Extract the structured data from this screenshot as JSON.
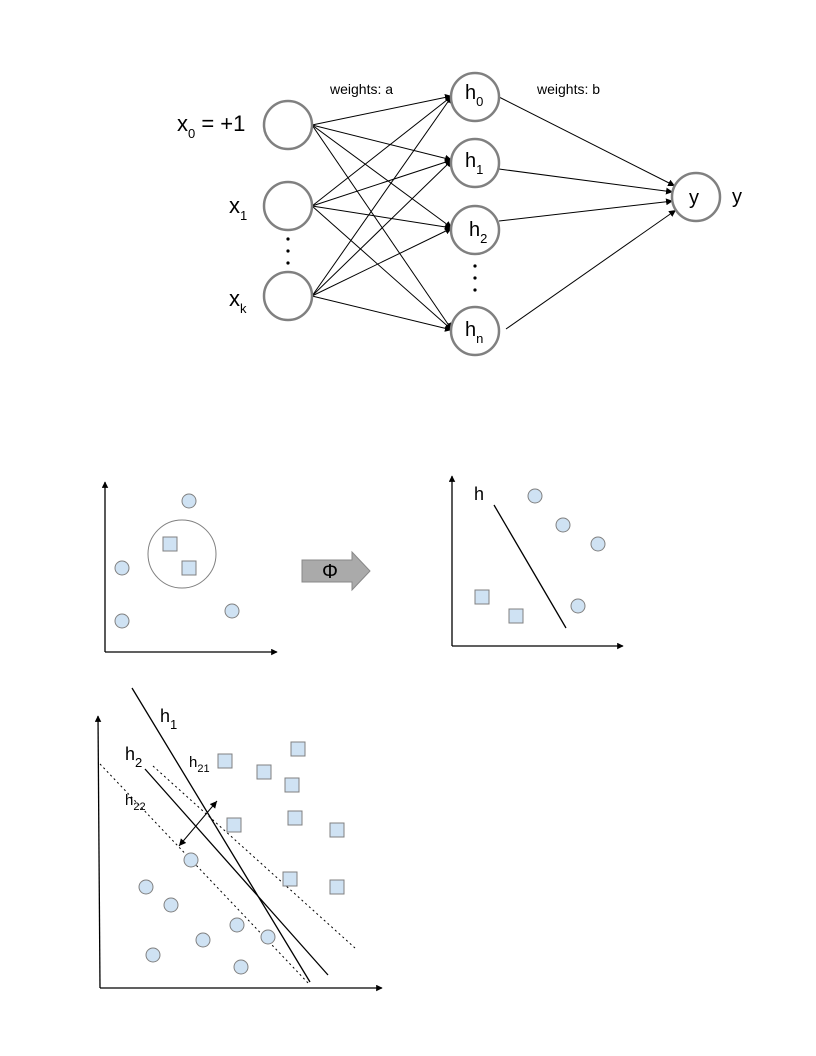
{
  "network": {
    "weights_a_label": "weights: a",
    "weights_b_label": "weights: b",
    "inputs": [
      {
        "base": "x",
        "sub": "0",
        "suffix": " = +1"
      },
      {
        "base": "x",
        "sub": "1",
        "suffix": ""
      },
      {
        "base": "x",
        "sub": "k",
        "suffix": ""
      }
    ],
    "hidden": [
      {
        "base": "h",
        "sub": "0"
      },
      {
        "base": "h",
        "sub": "1"
      },
      {
        "base": "h",
        "sub": "2"
      },
      {
        "base": "h",
        "sub": "n"
      }
    ],
    "output_node_label": "y",
    "output_label": "y",
    "colors": {
      "node_stroke": "#808080",
      "edge": "#000000"
    }
  },
  "mapping": {
    "phi_label": "Φ",
    "right_line_label": "h",
    "colors": {
      "marker_fill": "#cfe2f3",
      "marker_stroke": "#808080",
      "arrow_fill": "#aaaaaa"
    }
  },
  "margin": {
    "line_labels": [
      {
        "base": "h",
        "sub": "1"
      },
      {
        "base": "h",
        "sub": "2"
      },
      {
        "base": "h",
        "sub": "21"
      },
      {
        "base": "h",
        "sub": "22"
      }
    ]
  }
}
